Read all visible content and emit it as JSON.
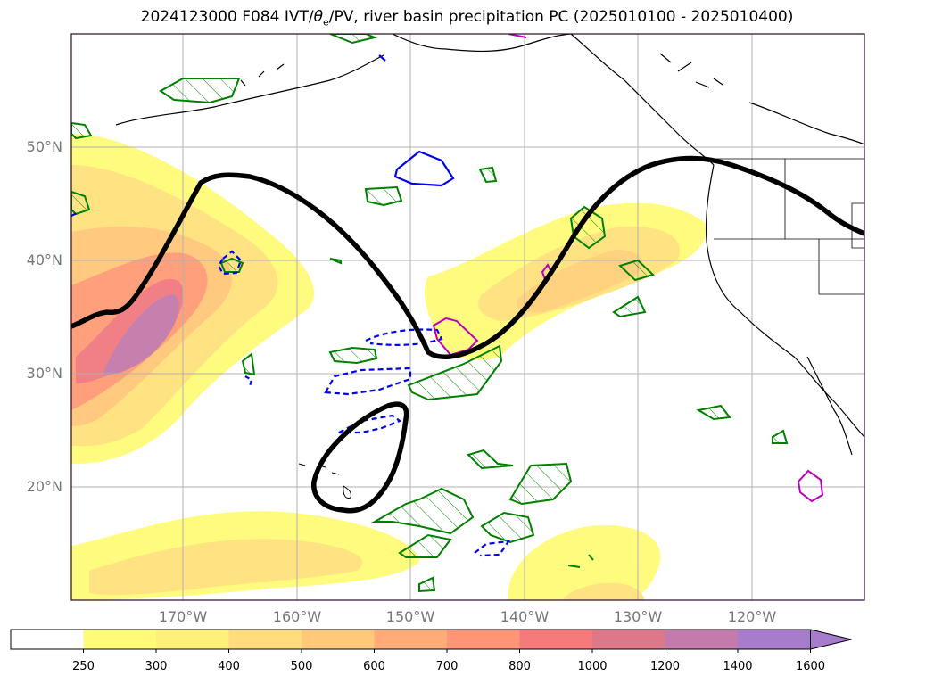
{
  "title": {
    "prefix": "2024123000 F084 IVT/",
    "theta": "θ",
    "sub": "e",
    "suffix": "/PV, river basin precipitation PC (2025010100 - 2025010400)"
  },
  "lat_labels": [
    "50°N",
    "40°N",
    "30°N",
    "20°N"
  ],
  "lon_labels": [
    "170°W",
    "160°W",
    "150°W",
    "140°W",
    "130°W",
    "120°W"
  ],
  "colorbar": {
    "ticks": [
      "250",
      "300",
      "400",
      "500",
      "600",
      "700",
      "800",
      "1000",
      "1200",
      "1400",
      "1600"
    ],
    "colors": [
      "#ffffff",
      "#fffb78",
      "#fff07a",
      "#ffdc7c",
      "#ffc87a",
      "#ffac78",
      "#ff9476",
      "#f67a7c",
      "#dc7888",
      "#c47aaa",
      "#a87ccc"
    ],
    "extend": "max"
  },
  "legend_colors": {
    "ivt_contour": "#000000",
    "green_region": "#008000",
    "blue_contour": "#0000ee",
    "magenta_contour": "#bb00bb"
  }
}
